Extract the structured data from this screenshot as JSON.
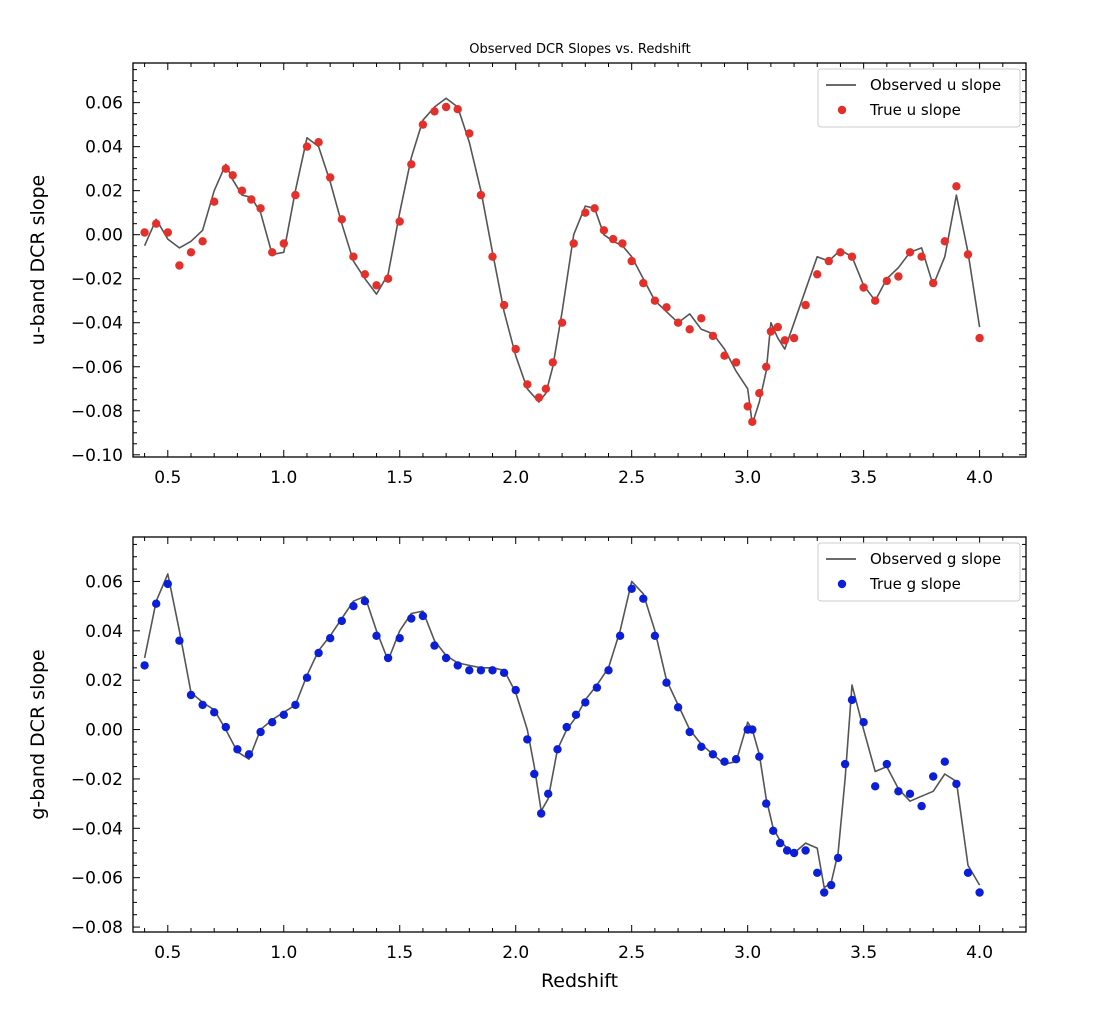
{
  "figure_title": "Observed DCR Slopes vs. Redshift",
  "chart_data": [
    {
      "type": "line",
      "title": "Observed DCR Slopes vs. Redshift",
      "xlabel": "",
      "ylabel": "u-band DCR slope",
      "xlim": [
        0.35,
        4.2
      ],
      "ylim": [
        -0.101,
        0.078
      ],
      "xticks": [
        0.5,
        1.0,
        1.5,
        2.0,
        2.5,
        3.0,
        3.5,
        4.0
      ],
      "xtick_labels": [
        "0.5",
        "1.0",
        "1.5",
        "2.0",
        "2.5",
        "3.0",
        "3.5",
        "4.0"
      ],
      "yticks": [
        -0.1,
        -0.08,
        -0.06,
        -0.04,
        -0.02,
        0.0,
        0.02,
        0.04,
        0.06
      ],
      "ytick_labels": [
        "−0.10",
        "−0.08",
        "−0.06",
        "−0.04",
        "−0.02",
        "0.00",
        "0.02",
        "0.04",
        "0.06"
      ],
      "legend": {
        "position": "top-right"
      },
      "grid": false,
      "series": [
        {
          "name": "Observed u slope",
          "kind": "line",
          "color": "#555555",
          "x": [
            0.4,
            0.45,
            0.5,
            0.55,
            0.6,
            0.65,
            0.7,
            0.75,
            0.78,
            0.82,
            0.86,
            0.9,
            0.95,
            1.0,
            1.05,
            1.1,
            1.15,
            1.2,
            1.25,
            1.3,
            1.35,
            1.4,
            1.45,
            1.5,
            1.55,
            1.6,
            1.65,
            1.7,
            1.75,
            1.8,
            1.85,
            1.9,
            1.95,
            2.0,
            2.05,
            2.1,
            2.13,
            2.16,
            2.2,
            2.25,
            2.3,
            2.34,
            2.38,
            2.42,
            2.46,
            2.5,
            2.55,
            2.6,
            2.65,
            2.7,
            2.75,
            2.8,
            2.85,
            2.9,
            2.95,
            3.0,
            3.02,
            3.05,
            3.08,
            3.1,
            3.13,
            3.16,
            3.2,
            3.25,
            3.3,
            3.35,
            3.4,
            3.45,
            3.5,
            3.55,
            3.6,
            3.65,
            3.7,
            3.75,
            3.8,
            3.85,
            3.9,
            3.95,
            4.0
          ],
          "y": [
            -0.005,
            0.007,
            -0.002,
            -0.006,
            -0.003,
            0.002,
            0.02,
            0.032,
            0.025,
            0.018,
            0.017,
            0.01,
            -0.009,
            -0.008,
            0.02,
            0.044,
            0.04,
            0.024,
            0.005,
            -0.012,
            -0.02,
            -0.027,
            -0.018,
            0.01,
            0.035,
            0.052,
            0.058,
            0.062,
            0.058,
            0.042,
            0.02,
            -0.008,
            -0.035,
            -0.055,
            -0.07,
            -0.076,
            -0.072,
            -0.06,
            -0.035,
            0.0,
            0.013,
            0.012,
            0.0,
            -0.003,
            -0.005,
            -0.01,
            -0.02,
            -0.03,
            -0.035,
            -0.04,
            -0.036,
            -0.043,
            -0.045,
            -0.052,
            -0.062,
            -0.07,
            -0.086,
            -0.076,
            -0.062,
            -0.04,
            -0.047,
            -0.052,
            -0.04,
            -0.025,
            -0.01,
            -0.012,
            -0.007,
            -0.01,
            -0.023,
            -0.03,
            -0.02,
            -0.015,
            -0.008,
            -0.006,
            -0.023,
            -0.01,
            0.018,
            -0.008,
            -0.042
          ]
        },
        {
          "name": "True u slope",
          "kind": "scatter",
          "color": "#e4302b",
          "x": [
            0.4,
            0.45,
            0.5,
            0.55,
            0.6,
            0.65,
            0.7,
            0.75,
            0.78,
            0.82,
            0.86,
            0.9,
            0.95,
            1.0,
            1.05,
            1.1,
            1.15,
            1.2,
            1.25,
            1.3,
            1.35,
            1.4,
            1.45,
            1.5,
            1.55,
            1.6,
            1.65,
            1.7,
            1.75,
            1.8,
            1.85,
            1.9,
            1.95,
            2.0,
            2.05,
            2.1,
            2.13,
            2.16,
            2.2,
            2.25,
            2.3,
            2.34,
            2.38,
            2.42,
            2.46,
            2.5,
            2.55,
            2.6,
            2.65,
            2.7,
            2.75,
            2.8,
            2.85,
            2.9,
            2.95,
            3.0,
            3.02,
            3.05,
            3.08,
            3.1,
            3.13,
            3.16,
            3.2,
            3.25,
            3.3,
            3.35,
            3.4,
            3.45,
            3.5,
            3.55,
            3.6,
            3.65,
            3.7,
            3.75,
            3.8,
            3.85,
            3.9,
            3.95,
            4.0
          ],
          "y": [
            0.001,
            0.005,
            0.001,
            -0.014,
            -0.008,
            -0.003,
            0.015,
            0.03,
            0.027,
            0.02,
            0.016,
            0.012,
            -0.008,
            -0.004,
            0.018,
            0.04,
            0.042,
            0.026,
            0.007,
            -0.01,
            -0.018,
            -0.023,
            -0.02,
            0.006,
            0.032,
            0.05,
            0.056,
            0.058,
            0.057,
            0.046,
            0.018,
            -0.01,
            -0.032,
            -0.052,
            -0.068,
            -0.074,
            -0.07,
            -0.058,
            -0.04,
            -0.004,
            0.01,
            0.012,
            0.002,
            -0.002,
            -0.004,
            -0.012,
            -0.022,
            -0.03,
            -0.033,
            -0.04,
            -0.043,
            -0.038,
            -0.046,
            -0.055,
            -0.058,
            -0.078,
            -0.085,
            -0.072,
            -0.06,
            -0.044,
            -0.042,
            -0.048,
            -0.047,
            -0.032,
            -0.018,
            -0.012,
            -0.008,
            -0.01,
            -0.024,
            -0.03,
            -0.021,
            -0.019,
            -0.008,
            -0.01,
            -0.022,
            -0.003,
            0.022,
            -0.009,
            -0.047
          ]
        }
      ]
    },
    {
      "type": "line",
      "title": "",
      "xlabel": "Redshift",
      "ylabel": "g-band DCR slope",
      "xlim": [
        0.35,
        4.2
      ],
      "ylim": [
        -0.082,
        0.078
      ],
      "xticks": [
        0.5,
        1.0,
        1.5,
        2.0,
        2.5,
        3.0,
        3.5,
        4.0
      ],
      "xtick_labels": [
        "0.5",
        "1.0",
        "1.5",
        "2.0",
        "2.5",
        "3.0",
        "3.5",
        "4.0"
      ],
      "yticks": [
        -0.08,
        -0.06,
        -0.04,
        -0.02,
        0.0,
        0.02,
        0.04,
        0.06
      ],
      "ytick_labels": [
        "−0.08",
        "−0.06",
        "−0.04",
        "−0.02",
        "0.00",
        "0.02",
        "0.04",
        "0.06"
      ],
      "legend": {
        "position": "top-right"
      },
      "grid": false,
      "series": [
        {
          "name": "Observed g slope",
          "kind": "line",
          "color": "#555555",
          "x": [
            0.4,
            0.45,
            0.5,
            0.55,
            0.6,
            0.65,
            0.7,
            0.75,
            0.8,
            0.85,
            0.9,
            0.95,
            1.0,
            1.05,
            1.1,
            1.15,
            1.2,
            1.25,
            1.3,
            1.35,
            1.4,
            1.45,
            1.5,
            1.55,
            1.6,
            1.65,
            1.7,
            1.75,
            1.8,
            1.85,
            1.9,
            1.95,
            2.0,
            2.05,
            2.08,
            2.11,
            2.14,
            2.18,
            2.22,
            2.26,
            2.3,
            2.35,
            2.4,
            2.45,
            2.5,
            2.55,
            2.6,
            2.65,
            2.7,
            2.75,
            2.8,
            2.85,
            2.9,
            2.95,
            3.0,
            3.02,
            3.05,
            3.08,
            3.11,
            3.14,
            3.17,
            3.2,
            3.25,
            3.3,
            3.33,
            3.36,
            3.39,
            3.42,
            3.45,
            3.5,
            3.55,
            3.6,
            3.65,
            3.7,
            3.75,
            3.8,
            3.85,
            3.9,
            3.95,
            4.0
          ],
          "y": [
            0.029,
            0.052,
            0.063,
            0.04,
            0.015,
            0.011,
            0.008,
            0.0,
            -0.009,
            -0.012,
            0.0,
            0.004,
            0.007,
            0.01,
            0.022,
            0.032,
            0.038,
            0.045,
            0.052,
            0.054,
            0.04,
            0.028,
            0.04,
            0.047,
            0.048,
            0.036,
            0.03,
            0.027,
            0.026,
            0.025,
            0.025,
            0.024,
            0.015,
            0.0,
            -0.015,
            -0.033,
            -0.028,
            -0.008,
            0.0,
            0.005,
            0.012,
            0.018,
            0.025,
            0.04,
            0.06,
            0.055,
            0.04,
            0.02,
            0.01,
            0.0,
            -0.006,
            -0.01,
            -0.014,
            -0.013,
            0.003,
            0.0,
            -0.01,
            -0.028,
            -0.04,
            -0.045,
            -0.048,
            -0.05,
            -0.046,
            -0.048,
            -0.064,
            -0.062,
            -0.05,
            -0.02,
            0.018,
            0.0,
            -0.017,
            -0.015,
            -0.024,
            -0.029,
            -0.027,
            -0.025,
            -0.018,
            -0.021,
            -0.055,
            -0.063
          ]
        },
        {
          "name": "True g slope",
          "kind": "scatter",
          "color": "#0c1fd8",
          "x": [
            0.4,
            0.45,
            0.5,
            0.55,
            0.6,
            0.65,
            0.7,
            0.75,
            0.8,
            0.85,
            0.9,
            0.95,
            1.0,
            1.05,
            1.1,
            1.15,
            1.2,
            1.25,
            1.3,
            1.35,
            1.4,
            1.45,
            1.5,
            1.55,
            1.6,
            1.65,
            1.7,
            1.75,
            1.8,
            1.85,
            1.9,
            1.95,
            2.0,
            2.05,
            2.08,
            2.11,
            2.14,
            2.18,
            2.22,
            2.26,
            2.3,
            2.35,
            2.4,
            2.45,
            2.5,
            2.55,
            2.6,
            2.65,
            2.7,
            2.75,
            2.8,
            2.85,
            2.9,
            2.95,
            3.0,
            3.02,
            3.05,
            3.08,
            3.11,
            3.14,
            3.17,
            3.2,
            3.25,
            3.3,
            3.33,
            3.36,
            3.39,
            3.42,
            3.45,
            3.5,
            3.55,
            3.6,
            3.65,
            3.7,
            3.75,
            3.8,
            3.85,
            3.9,
            3.95,
            4.0
          ],
          "y": [
            0.026,
            0.051,
            0.059,
            0.036,
            0.014,
            0.01,
            0.007,
            0.001,
            -0.008,
            -0.01,
            -0.001,
            0.003,
            0.006,
            0.01,
            0.021,
            0.031,
            0.037,
            0.044,
            0.05,
            0.052,
            0.038,
            0.029,
            0.037,
            0.045,
            0.046,
            0.034,
            0.029,
            0.026,
            0.024,
            0.024,
            0.024,
            0.023,
            0.016,
            -0.004,
            -0.018,
            -0.034,
            -0.026,
            -0.008,
            0.001,
            0.006,
            0.011,
            0.017,
            0.024,
            0.038,
            0.057,
            0.053,
            0.038,
            0.019,
            0.009,
            -0.001,
            -0.007,
            -0.01,
            -0.013,
            -0.012,
            0.0,
            0.0,
            -0.011,
            -0.03,
            -0.041,
            -0.046,
            -0.049,
            -0.05,
            -0.049,
            -0.058,
            -0.066,
            -0.063,
            -0.052,
            -0.014,
            0.012,
            0.003,
            -0.023,
            -0.014,
            -0.025,
            -0.026,
            -0.031,
            -0.019,
            -0.013,
            -0.022,
            -0.058,
            -0.066
          ]
        }
      ]
    }
  ]
}
